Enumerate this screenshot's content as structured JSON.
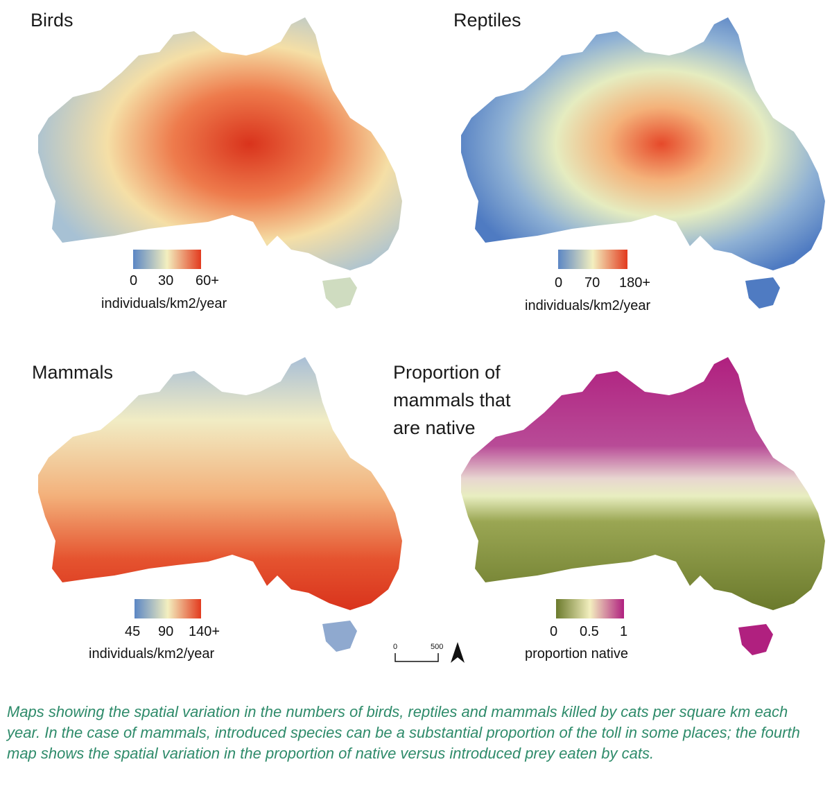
{
  "panels": [
    {
      "title": "Birds",
      "legend_ticks": [
        "0",
        "30",
        "60+"
      ],
      "legend_unit": "individuals/km2/year",
      "colors": [
        "#5b86c4",
        "#f3efbf",
        "#e23a1e"
      ],
      "pattern": "center-high"
    },
    {
      "title": "Reptiles",
      "legend_ticks": [
        "0",
        "70",
        "180+"
      ],
      "legend_unit": "individuals/km2/year",
      "colors": [
        "#5b86c4",
        "#f3efbf",
        "#e23a1e"
      ],
      "pattern": "core-high"
    },
    {
      "title": "Mammals",
      "legend_ticks": [
        "45",
        "90",
        "140+"
      ],
      "legend_unit": "individuals/km2/year",
      "colors": [
        "#5b86c4",
        "#f3efbf",
        "#e23a1e"
      ],
      "pattern": "south-high"
    },
    {
      "title_lines": [
        "Proportion of",
        "mammals that",
        "are native"
      ],
      "legend_ticks": [
        "0",
        "0.5",
        "1"
      ],
      "legend_unit": "proportion native",
      "colors": [
        "#6b7a2c",
        "#f3efbf",
        "#b0207f"
      ],
      "pattern": "north-high"
    }
  ],
  "scale_bar": {
    "start": "0",
    "end": "500"
  },
  "caption": "Maps showing the spatial variation in the numbers of birds, reptiles and mammals killed by cats per square km each year. In the case of mammals, introduced species can be a substantial proportion of the toll in some places; the fourth map shows the spatial variation in the proportion of native versus introduced prey eaten by cats."
}
